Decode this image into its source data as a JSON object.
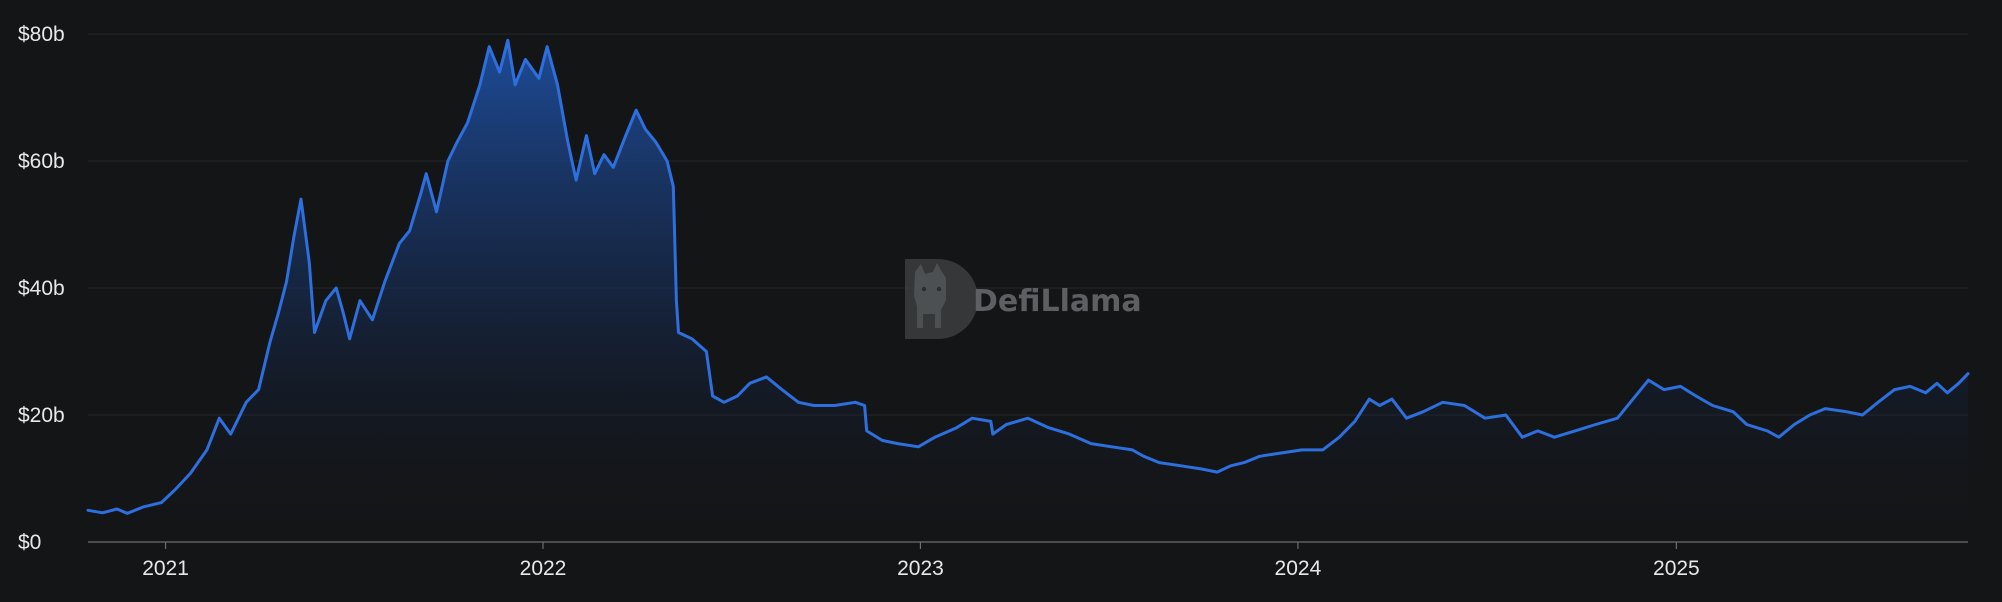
{
  "watermark": {
    "text": "DefiLlama"
  },
  "colors": {
    "background": "#141517",
    "line": "#2e6fde",
    "fill_top": "#1e4fa0",
    "grid": "#24262a",
    "text": "#e8e8e8"
  },
  "chart_data": {
    "type": "area",
    "title": "",
    "xlabel": "",
    "ylabel": "",
    "ylim": [
      0,
      80
    ],
    "y_unit": "billions USD",
    "y_ticks": [
      0,
      20,
      40,
      60,
      80
    ],
    "y_tick_labels": [
      "$0",
      "$20b",
      "$40b",
      "$60b",
      "$80b"
    ],
    "x_range": [
      "2020-10-18",
      "2025-10-10"
    ],
    "x_ticks": [
      "2021-01-01",
      "2022-01-01",
      "2023-01-01",
      "2024-01-01",
      "2025-01-01"
    ],
    "x_tick_labels": [
      "2021",
      "2022",
      "2023",
      "2024",
      "2025"
    ],
    "grid": true,
    "legend": "none",
    "series": [
      {
        "points": [
          [
            "2020-10-18",
            5.0
          ],
          [
            "2020-11-01",
            4.6
          ],
          [
            "2020-11-15",
            5.2
          ],
          [
            "2020-11-25",
            4.5
          ],
          [
            "2020-12-10",
            5.5
          ],
          [
            "2020-12-28",
            6.2
          ],
          [
            "2021-01-10",
            8.2
          ],
          [
            "2021-01-25",
            10.8
          ],
          [
            "2021-02-10",
            14.5
          ],
          [
            "2021-02-22",
            19.5
          ],
          [
            "2021-03-05",
            17.0
          ],
          [
            "2021-03-20",
            22.0
          ],
          [
            "2021-04-01",
            24.0
          ],
          [
            "2021-04-12",
            31.5
          ],
          [
            "2021-04-20",
            36.0
          ],
          [
            "2021-04-28",
            41.0
          ],
          [
            "2021-05-05",
            48.0
          ],
          [
            "2021-05-12",
            54.0
          ],
          [
            "2021-05-20",
            44.0
          ],
          [
            "2021-05-25",
            33.0
          ],
          [
            "2021-06-05",
            38.0
          ],
          [
            "2021-06-15",
            40.0
          ],
          [
            "2021-06-22",
            36.0
          ],
          [
            "2021-06-28",
            32.0
          ],
          [
            "2021-07-08",
            38.0
          ],
          [
            "2021-07-20",
            35.0
          ],
          [
            "2021-08-01",
            41.0
          ],
          [
            "2021-08-15",
            47.0
          ],
          [
            "2021-08-25",
            49.0
          ],
          [
            "2021-09-05",
            55.0
          ],
          [
            "2021-09-10",
            58.0
          ],
          [
            "2021-09-20",
            52.0
          ],
          [
            "2021-10-01",
            60.0
          ],
          [
            "2021-10-10",
            63.0
          ],
          [
            "2021-10-20",
            66.0
          ],
          [
            "2021-11-01",
            72.0
          ],
          [
            "2021-11-10",
            78.0
          ],
          [
            "2021-11-20",
            74.0
          ],
          [
            "2021-11-28",
            79.0
          ],
          [
            "2021-12-05",
            72.0
          ],
          [
            "2021-12-15",
            76.0
          ],
          [
            "2021-12-28",
            73.0
          ],
          [
            "2022-01-05",
            78.0
          ],
          [
            "2022-01-15",
            72.0
          ],
          [
            "2022-01-25",
            63.0
          ],
          [
            "2022-02-02",
            57.0
          ],
          [
            "2022-02-12",
            64.0
          ],
          [
            "2022-02-20",
            58.0
          ],
          [
            "2022-03-01",
            61.0
          ],
          [
            "2022-03-10",
            59.0
          ],
          [
            "2022-03-22",
            64.0
          ],
          [
            "2022-04-01",
            68.0
          ],
          [
            "2022-04-10",
            65.0
          ],
          [
            "2022-04-20",
            63.0
          ],
          [
            "2022-05-01",
            60.0
          ],
          [
            "2022-05-07",
            56.0
          ],
          [
            "2022-05-10",
            38.0
          ],
          [
            "2022-05-12",
            33.0
          ],
          [
            "2022-05-25",
            32.0
          ],
          [
            "2022-06-08",
            30.0
          ],
          [
            "2022-06-14",
            23.0
          ],
          [
            "2022-06-25",
            22.0
          ],
          [
            "2022-07-08",
            23.0
          ],
          [
            "2022-07-20",
            25.0
          ],
          [
            "2022-08-05",
            26.0
          ],
          [
            "2022-08-20",
            24.0
          ],
          [
            "2022-09-05",
            22.0
          ],
          [
            "2022-09-20",
            21.5
          ],
          [
            "2022-10-10",
            21.5
          ],
          [
            "2022-10-30",
            22.0
          ],
          [
            "2022-11-08",
            21.5
          ],
          [
            "2022-11-10",
            17.5
          ],
          [
            "2022-11-25",
            16.0
          ],
          [
            "2022-12-10",
            15.5
          ],
          [
            "2022-12-30",
            15.0
          ],
          [
            "2023-01-15",
            16.5
          ],
          [
            "2023-02-05",
            18.0
          ],
          [
            "2023-02-20",
            19.5
          ],
          [
            "2023-03-10",
            19.0
          ],
          [
            "2023-03-12",
            17.0
          ],
          [
            "2023-03-25",
            18.5
          ],
          [
            "2023-04-15",
            19.5
          ],
          [
            "2023-05-05",
            18.0
          ],
          [
            "2023-05-25",
            17.0
          ],
          [
            "2023-06-15",
            15.5
          ],
          [
            "2023-07-05",
            15.0
          ],
          [
            "2023-07-25",
            14.5
          ],
          [
            "2023-08-05",
            13.5
          ],
          [
            "2023-08-20",
            12.5
          ],
          [
            "2023-09-10",
            12.0
          ],
          [
            "2023-09-30",
            11.5
          ],
          [
            "2023-10-15",
            11.0
          ],
          [
            "2023-10-28",
            12.0
          ],
          [
            "2023-11-10",
            12.5
          ],
          [
            "2023-11-25",
            13.5
          ],
          [
            "2023-12-15",
            14.0
          ],
          [
            "2024-01-05",
            14.5
          ],
          [
            "2024-01-25",
            14.5
          ],
          [
            "2024-02-10",
            16.5
          ],
          [
            "2024-02-25",
            19.0
          ],
          [
            "2024-03-10",
            22.5
          ],
          [
            "2024-03-20",
            21.5
          ],
          [
            "2024-04-01",
            22.5
          ],
          [
            "2024-04-15",
            19.5
          ],
          [
            "2024-05-01",
            20.5
          ],
          [
            "2024-05-20",
            22.0
          ],
          [
            "2024-06-10",
            21.5
          ],
          [
            "2024-06-30",
            19.5
          ],
          [
            "2024-07-20",
            20.0
          ],
          [
            "2024-08-05",
            16.5
          ],
          [
            "2024-08-20",
            17.5
          ],
          [
            "2024-09-05",
            16.5
          ],
          [
            "2024-09-25",
            17.5
          ],
          [
            "2024-10-15",
            18.5
          ],
          [
            "2024-11-05",
            19.5
          ],
          [
            "2024-11-20",
            22.5
          ],
          [
            "2024-12-05",
            25.5
          ],
          [
            "2024-12-20",
            24.0
          ],
          [
            "2025-01-05",
            24.5
          ],
          [
            "2025-01-20",
            23.0
          ],
          [
            "2025-02-05",
            21.5
          ],
          [
            "2025-02-25",
            20.5
          ],
          [
            "2025-03-10",
            18.5
          ],
          [
            "2025-03-30",
            17.5
          ],
          [
            "2025-04-10",
            16.5
          ],
          [
            "2025-04-25",
            18.5
          ],
          [
            "2025-05-10",
            20.0
          ],
          [
            "2025-05-25",
            21.0
          ],
          [
            "2025-06-15",
            20.5
          ],
          [
            "2025-06-30",
            20.0
          ],
          [
            "2025-07-15",
            22.0
          ],
          [
            "2025-07-31",
            24.0
          ],
          [
            "2025-08-15",
            24.5
          ],
          [
            "2025-08-30",
            23.5
          ],
          [
            "2025-09-10",
            25.0
          ],
          [
            "2025-09-20",
            23.5
          ],
          [
            "2025-10-01",
            25.0
          ],
          [
            "2025-10-10",
            26.5
          ]
        ]
      }
    ]
  }
}
